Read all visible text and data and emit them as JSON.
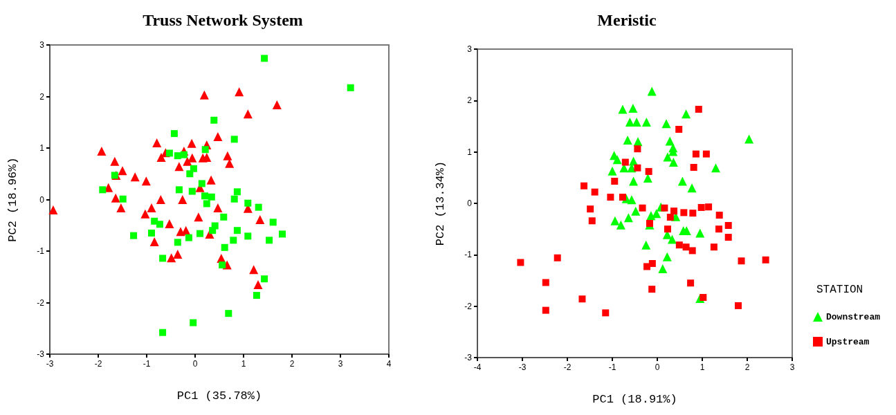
{
  "chart_data": [
    {
      "type": "scatter",
      "title": "Truss Network System",
      "xlabel": "PC1 (35.78%)",
      "ylabel": "PC2 (18.96%)",
      "xlim": [
        -3,
        4
      ],
      "xticks": [
        -3,
        -2,
        -1,
        0,
        1,
        2,
        3,
        4
      ],
      "ylim": [
        -3,
        3
      ],
      "yticks": [
        -3,
        -2,
        -1,
        0,
        1,
        2,
        3
      ],
      "grid": false,
      "legend": false,
      "series": [
        {
          "color": "#ff0000",
          "marker": "triangle",
          "x": [
            -2.93,
            -1.93,
            -1.79,
            -1.66,
            -1.63,
            -1.5,
            -1.64,
            -1.53,
            -1.24,
            -1.01,
            -1.03,
            -0.9,
            -0.84,
            -0.71,
            -0.79,
            -0.7,
            -0.61,
            -0.53,
            -0.49,
            -0.36,
            -0.33,
            -0.3,
            -0.23,
            -0.26,
            -0.19,
            -0.16,
            -0.07,
            -0.06,
            0.07,
            0.1,
            0.16,
            0.24,
            0.24,
            0.19,
            0.33,
            0.3,
            0.47,
            0.47,
            0.54,
            0.91,
            1.69,
            1.09,
            0.67,
            0.71,
            1.09,
            1.34,
            0.66,
            1.21,
            1.3
          ],
          "values": [
            -0.2,
            0.94,
            0.23,
            0.74,
            0.47,
            0.56,
            0.03,
            -0.16,
            0.44,
            0.36,
            -0.28,
            -0.16,
            -0.82,
            0.0,
            1.1,
            0.82,
            0.91,
            -0.47,
            -1.13,
            -1.06,
            0.64,
            -0.62,
            0.94,
            0.0,
            -0.6,
            0.74,
            1.09,
            0.81,
            -0.34,
            0.23,
            0.81,
            1.06,
            0.82,
            2.03,
            0.38,
            -0.67,
            1.22,
            -0.16,
            -1.14,
            2.09,
            1.84,
            1.66,
            0.85,
            0.7,
            -0.17,
            -0.39,
            -1.27,
            -1.36,
            -1.65
          ]
        },
        {
          "color": "#00ff00",
          "marker": "square",
          "x": [
            -1.91,
            -1.66,
            -1.49,
            -1.27,
            -0.9,
            -0.84,
            -0.73,
            -0.67,
            -0.67,
            -0.53,
            -0.43,
            -0.36,
            -0.33,
            -0.36,
            -0.23,
            -0.13,
            -0.11,
            -0.03,
            -0.06,
            -0.04,
            0.1,
            0.14,
            0.21,
            0.2,
            0.24,
            0.34,
            0.39,
            0.41,
            0.36,
            1.43,
            3.21,
            0.81,
            0.87,
            0.81,
            1.09,
            1.31,
            0.59,
            1.61,
            1.8,
            0.87,
            1.09,
            0.79,
            1.53,
            0.61,
            0.56,
            1.43,
            1.27,
            0.69
          ],
          "values": [
            0.19,
            0.47,
            0.01,
            -0.7,
            -0.65,
            -0.42,
            -0.48,
            -1.14,
            -2.58,
            0.9,
            1.28,
            0.85,
            0.19,
            -0.83,
            0.87,
            -0.74,
            0.5,
            0.6,
            0.16,
            -2.39,
            -0.66,
            0.31,
            0.97,
            0.07,
            -0.08,
            0.05,
            1.54,
            -0.51,
            -0.6,
            2.74,
            2.17,
            1.17,
            0.15,
            0.01,
            -0.07,
            -0.15,
            -0.34,
            -0.44,
            -0.67,
            -0.6,
            -0.71,
            -0.79,
            -0.79,
            -0.93,
            -1.27,
            -1.54,
            -1.86,
            -2.21
          ]
        }
      ]
    },
    {
      "type": "scatter",
      "title": "Meristic",
      "xlabel": "PC1 (18.91%)",
      "ylabel": "PC2 (13.34%)",
      "legend_title": "STATION",
      "xlim": [
        -4,
        3
      ],
      "xticks": [
        -4,
        -3,
        -2,
        -1,
        0,
        1,
        2,
        3
      ],
      "ylim": [
        -3,
        3
      ],
      "yticks": [
        -3,
        -2,
        -1,
        0,
        1,
        2,
        3
      ],
      "grid": false,
      "legend": "right",
      "series": [
        {
          "name": "Downstream",
          "color": "#00ff00",
          "marker": "triangle",
          "x": [
            -0.77,
            -0.54,
            -0.61,
            -0.46,
            -0.66,
            -0.43,
            -0.96,
            -0.89,
            -1.0,
            -0.74,
            -0.57,
            -0.53,
            -0.69,
            -0.57,
            -0.48,
            -0.64,
            -0.94,
            -0.81,
            -0.53,
            -0.12,
            -0.24,
            0.2,
            0.64,
            2.04,
            0.28,
            0.35,
            0.35,
            0.23,
            0.36,
            1.3,
            -0.21,
            0.56,
            0.77,
            0.08,
            -0.02,
            -0.14,
            -0.17,
            0.41,
            0.22,
            0.33,
            0.58,
            0.65,
            0.95,
            -0.25,
            0.22,
            0.12,
            0.95
          ],
          "values": [
            1.83,
            1.85,
            1.58,
            1.58,
            1.23,
            1.2,
            0.93,
            0.85,
            0.63,
            0.69,
            0.69,
            0.43,
            0.09,
            0.07,
            -0.15,
            -0.28,
            -0.34,
            -0.42,
            0.82,
            2.18,
            1.58,
            1.55,
            1.74,
            1.25,
            1.21,
            1.08,
            1.01,
            0.9,
            0.8,
            0.69,
            0.49,
            0.43,
            0.3,
            -0.07,
            -0.2,
            -0.24,
            -0.42,
            -0.26,
            -0.61,
            -0.7,
            -0.53,
            -0.53,
            -0.58,
            -0.81,
            -1.04,
            -1.27,
            -1.85
          ]
        },
        {
          "name": "Upstream",
          "color": "#ff0000",
          "marker": "square",
          "x": [
            -3.04,
            -2.22,
            -2.48,
            -2.48,
            -1.67,
            -1.15,
            -1.63,
            -1.39,
            -1.49,
            -1.45,
            -1.04,
            -0.95,
            -0.77,
            -0.71,
            -0.44,
            -0.44,
            0.92,
            0.48,
            0.86,
            1.09,
            0.81,
            -0.19,
            -0.33,
            0.16,
            0.37,
            0.29,
            0.59,
            0.79,
            0.98,
            1.14,
            1.38,
            1.58,
            1.37,
            1.58,
            -0.17,
            0.23,
            0.49,
            0.64,
            0.78,
            1.26,
            1.87,
            2.41,
            -0.23,
            -0.11,
            0.74,
            -0.12,
            1.02,
            1.8
          ],
          "values": [
            -1.15,
            -1.06,
            -1.54,
            -2.08,
            -1.86,
            -2.13,
            0.34,
            0.22,
            -0.11,
            -0.34,
            0.12,
            0.43,
            0.12,
            0.8,
            1.06,
            0.69,
            1.83,
            1.44,
            0.96,
            0.96,
            0.7,
            0.62,
            -0.09,
            -0.09,
            -0.15,
            -0.27,
            -0.18,
            -0.19,
            -0.08,
            -0.07,
            -0.23,
            -0.43,
            -0.5,
            -0.66,
            -0.39,
            -0.5,
            -0.81,
            -0.85,
            -0.92,
            -0.85,
            -1.12,
            -1.1,
            -1.23,
            -1.17,
            -1.55,
            -1.67,
            -1.83,
            -1.99
          ]
        }
      ]
    }
  ]
}
